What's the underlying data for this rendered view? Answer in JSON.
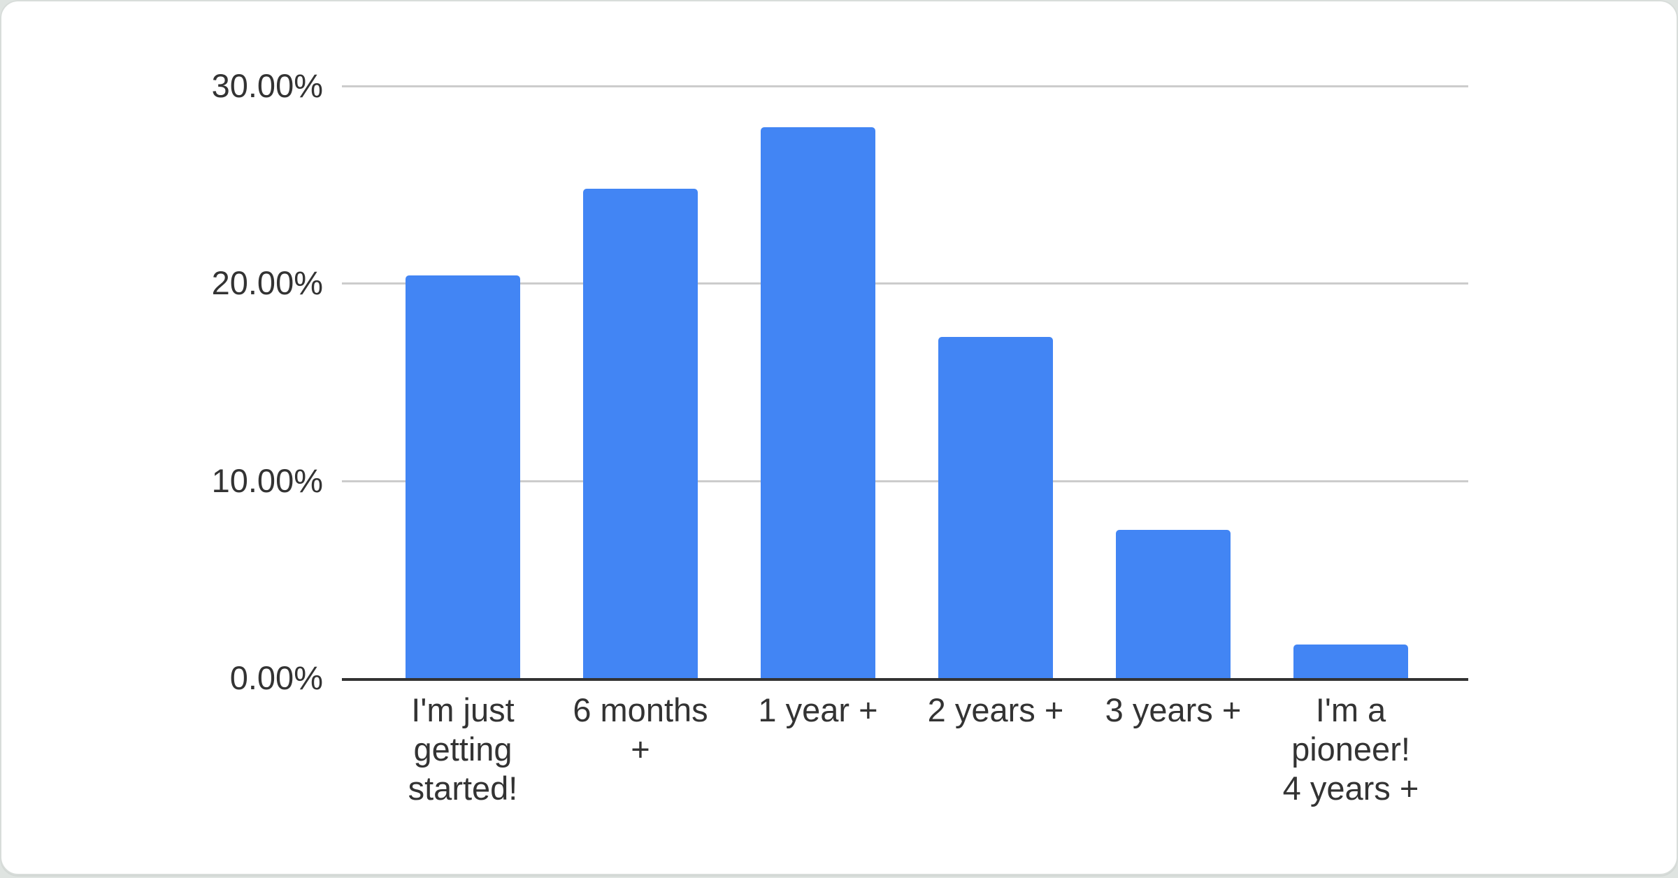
{
  "chart": {
    "page_background": "#dfe4e1",
    "card_background": "#ffffff",
    "card_border_color": "#d8ddda",
    "bar_color": "#4285f4",
    "gridline_color": "#cccccc",
    "axis_color": "#333333",
    "label_color": "#333333"
  },
  "chart_data": {
    "type": "bar",
    "title": "",
    "xlabel": "",
    "ylabel": "",
    "categories": [
      "I'm just getting started!",
      "6 months +",
      "1 year +",
      "2 years +",
      "3 years +",
      "I'm a pioneer! 4 years +"
    ],
    "values": [
      20.4,
      24.8,
      27.9,
      17.3,
      7.5,
      1.7
    ],
    "value_unit": "%",
    "ylim": [
      0,
      30
    ],
    "ytick_interval": 10,
    "ytick_labels": [
      "30.00%",
      "20.00%",
      "10.00%",
      "0.00%"
    ],
    "grid": true,
    "legend_position": "none"
  }
}
